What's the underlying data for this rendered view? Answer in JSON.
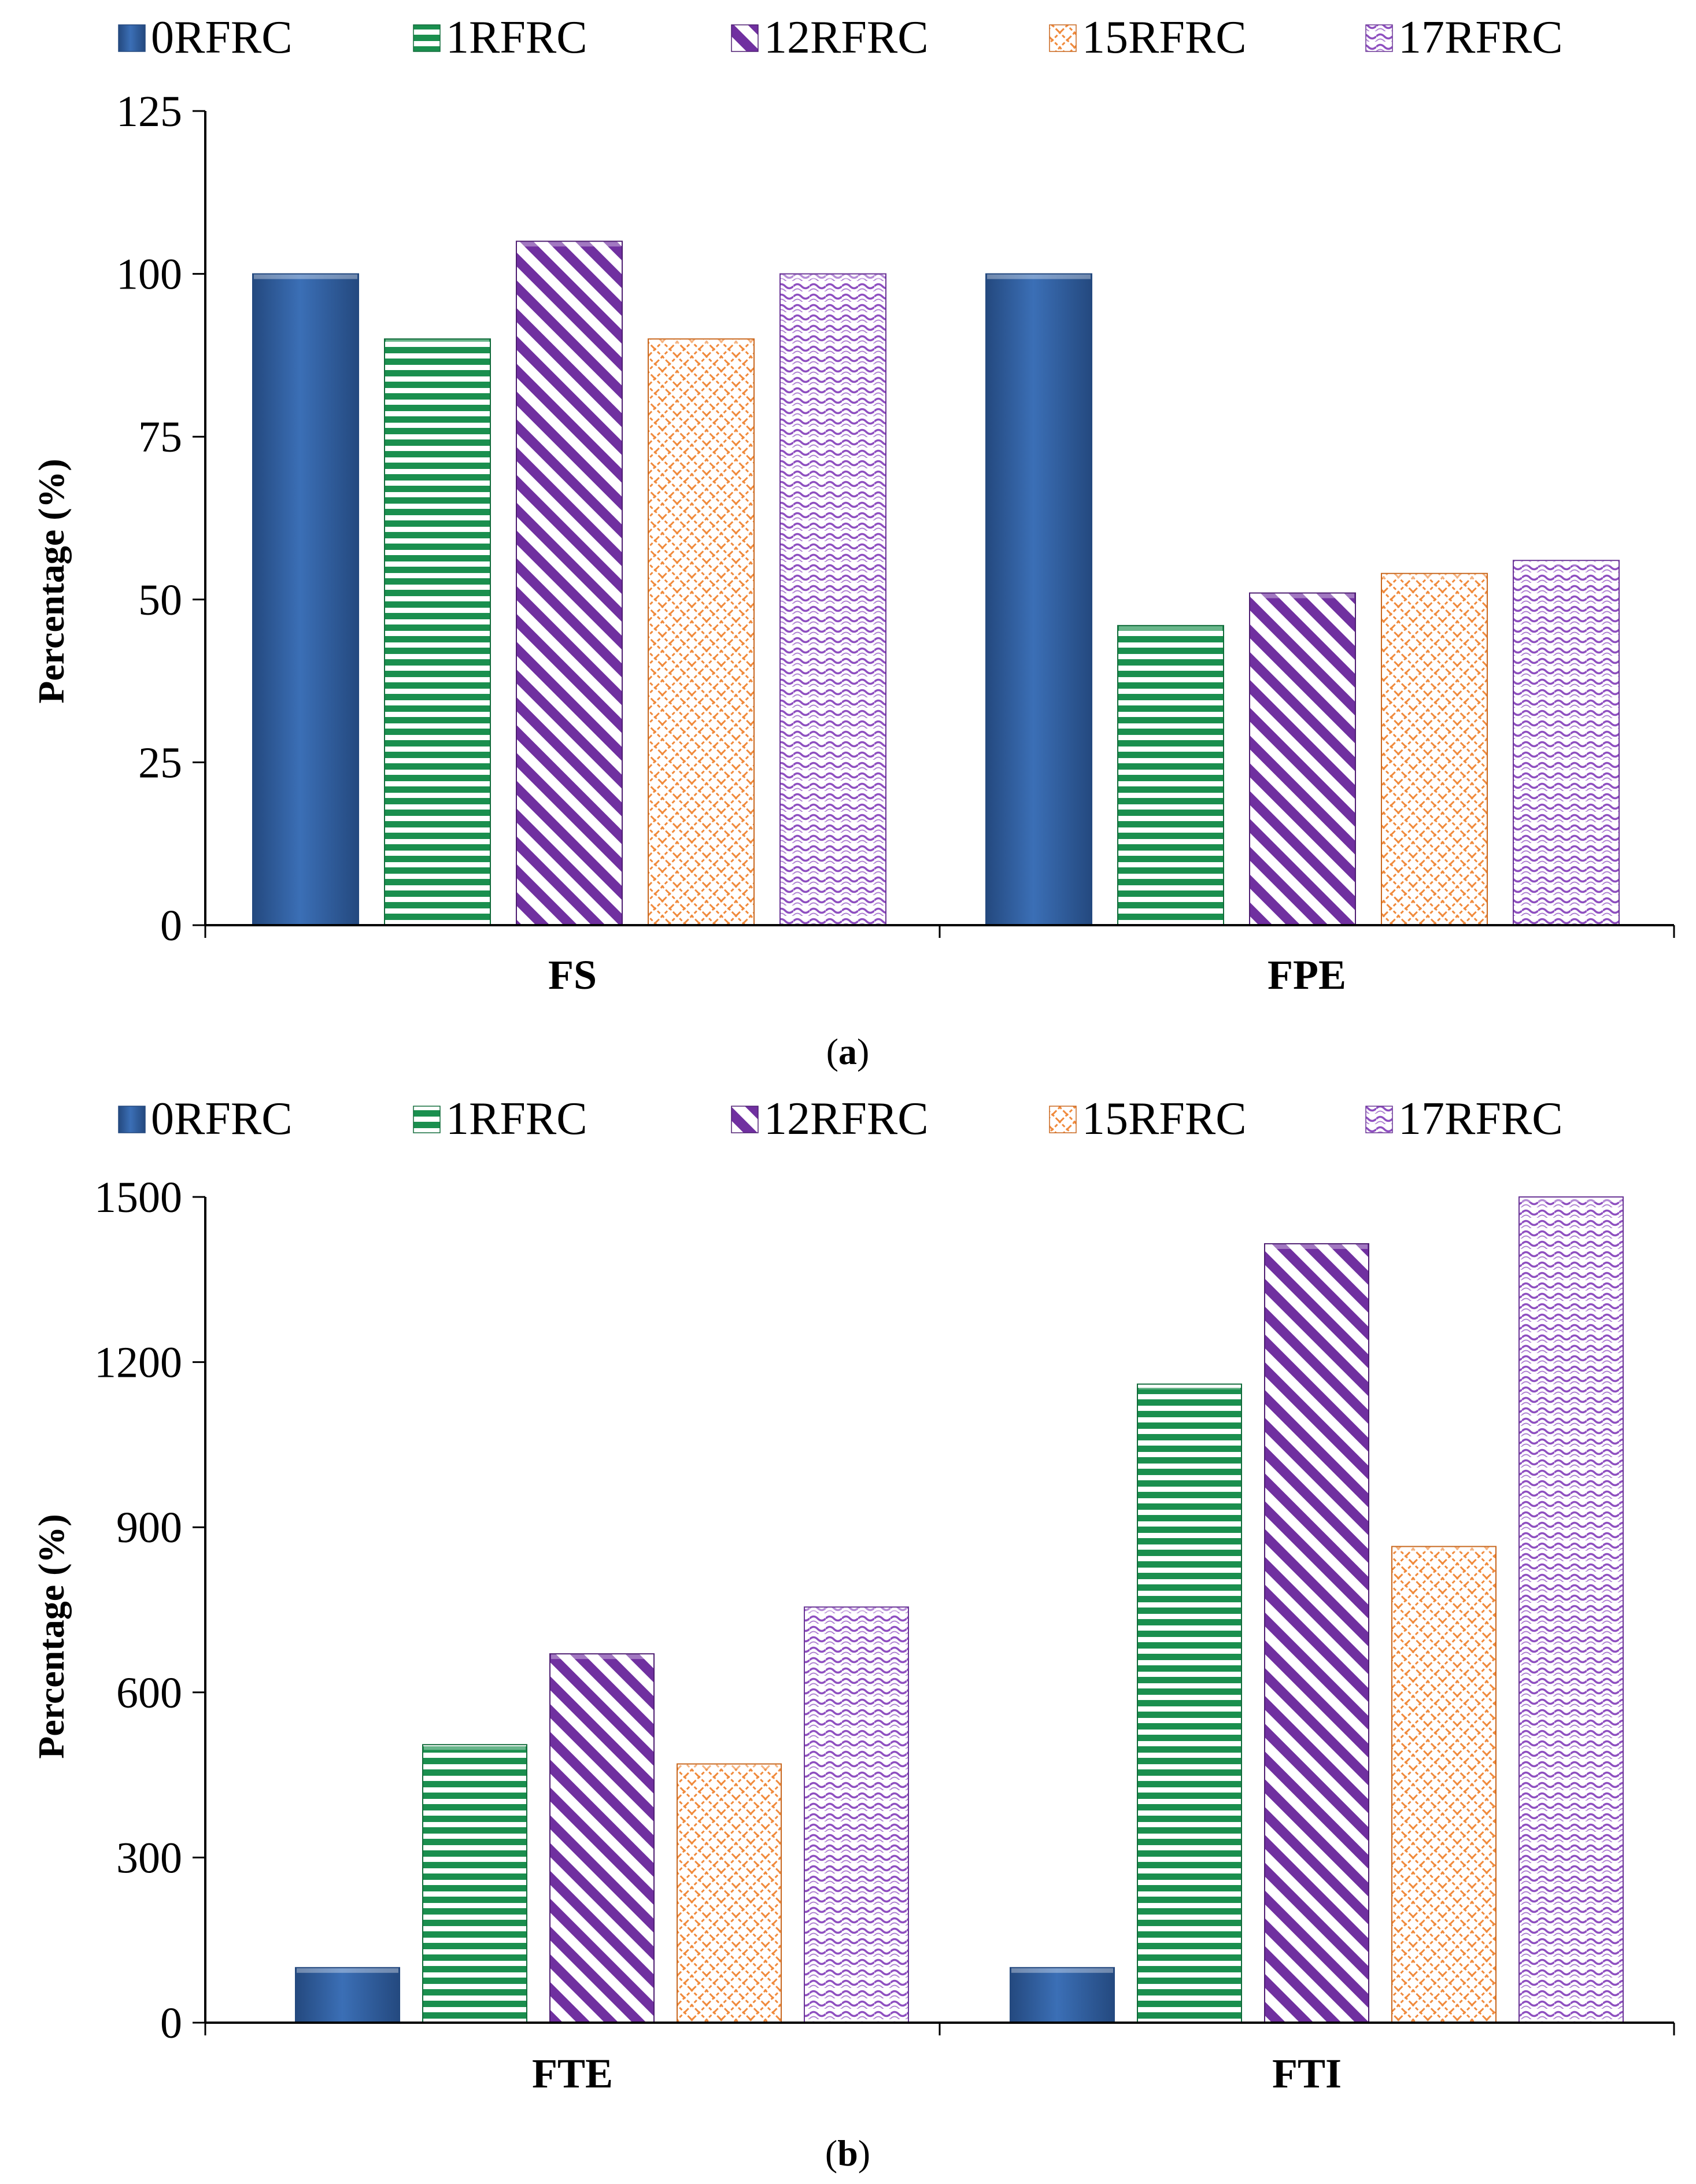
{
  "figure": {
    "panel_labels": [
      "a",
      "b"
    ]
  },
  "series_styles": [
    {
      "name": "0RFRC",
      "color": "#3b6fb6",
      "dark": "#24497f",
      "pattern": "solid"
    },
    {
      "name": "1RFRC",
      "color": "#1a8f4e",
      "dark": "#116b3a",
      "pattern": "hstripes"
    },
    {
      "name": "12RFRC",
      "color": "#7030a0",
      "dark": "#4e1e72",
      "pattern": "diag"
    },
    {
      "name": "15RFRC",
      "color": "#f08a3c",
      "dark": "#c8671e",
      "pattern": "lattice"
    },
    {
      "name": "17RFRC",
      "color": "#8e4fc0",
      "dark": "#6a3596",
      "pattern": "waves"
    }
  ],
  "chart_data": [
    {
      "type": "bar",
      "panel": "a",
      "categories": [
        "FS",
        "FPE"
      ],
      "series": [
        {
          "name": "0RFRC",
          "values": [
            100,
            100
          ]
        },
        {
          "name": "1RFRC",
          "values": [
            90,
            46
          ]
        },
        {
          "name": "12RFRC",
          "values": [
            105,
            51
          ]
        },
        {
          "name": "15RFRC",
          "values": [
            90,
            54
          ]
        },
        {
          "name": "17RFRC",
          "values": [
            100,
            56
          ]
        }
      ],
      "title": "",
      "xlabel": "",
      "ylabel": "Percentage (%)",
      "ylim": [
        0,
        125
      ],
      "yticks": [
        "0",
        "25",
        "50",
        "75",
        "100",
        "125"
      ],
      "legend": "top",
      "grid": false
    },
    {
      "type": "bar",
      "panel": "b",
      "categories": [
        "FTE",
        "FTI"
      ],
      "series": [
        {
          "name": "0RFRC",
          "values": [
            100,
            100
          ]
        },
        {
          "name": "1RFRC",
          "values": [
            505,
            1160
          ]
        },
        {
          "name": "12RFRC",
          "values": [
            670,
            1415
          ]
        },
        {
          "name": "15RFRC",
          "values": [
            470,
            865
          ]
        },
        {
          "name": "17RFRC",
          "values": [
            755,
            1500
          ]
        }
      ],
      "title": "",
      "xlabel": "",
      "ylabel": "Percentage (%)",
      "ylim": [
        0,
        1500
      ],
      "yticks": [
        "0",
        "300",
        "600",
        "900",
        "1200",
        "1500"
      ],
      "legend": "top",
      "grid": false
    }
  ]
}
